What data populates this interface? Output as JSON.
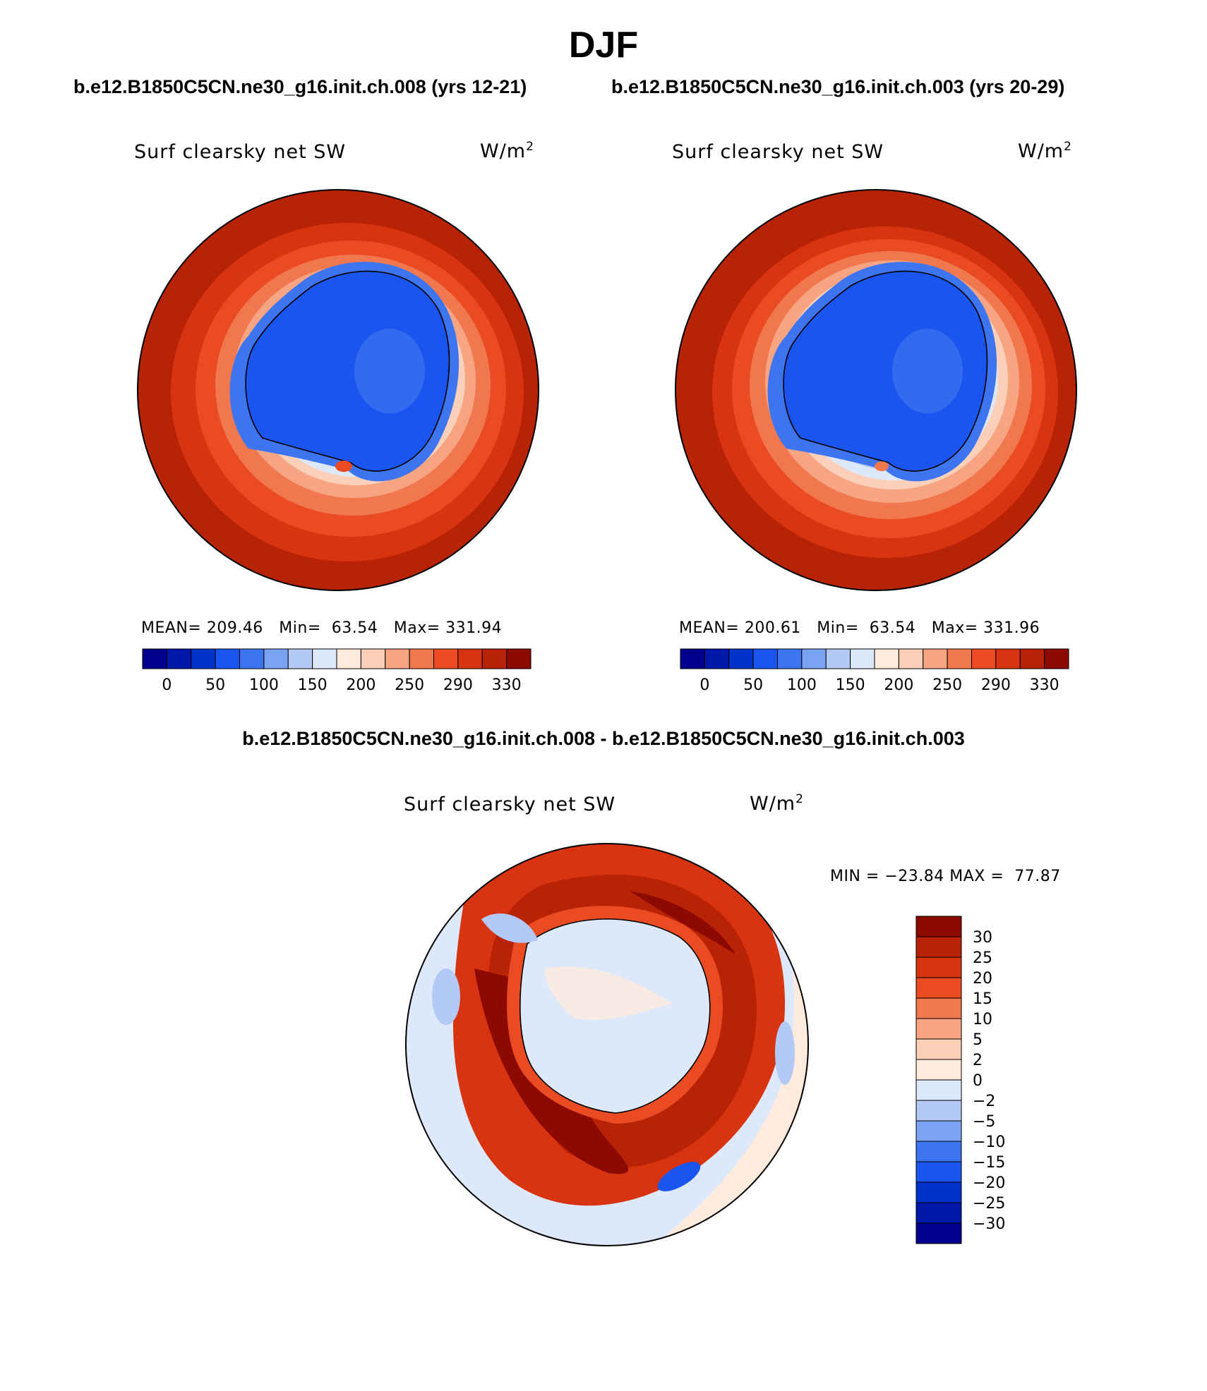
{
  "page": {
    "title": "DJF",
    "case_a_title": "b.e12.B1850C5CN.ne30_g16.init.ch.008 (yrs 12-21)",
    "case_b_title": "b.e12.B1850C5CN.ne30_g16.init.ch.003 (yrs 20-29)",
    "diff_title": "b.e12.B1850C5CN.ne30_g16.init.ch.008 - b.e12.B1850C5CN.ne30_g16.init.ch.003"
  },
  "panels": {
    "a": {
      "variable": "Surf clearsky net SW",
      "units_base": "W/m",
      "units_exp": "2",
      "mean_label": "MEAN=",
      "mean": "209.46",
      "min_label": "Min=",
      "min": "63.54",
      "max_label": "Max=",
      "max": "331.94"
    },
    "b": {
      "variable": "Surf clearsky net SW",
      "units_base": "W/m",
      "units_exp": "2",
      "mean_label": "MEAN=",
      "mean": "200.61",
      "min_label": "Min=",
      "min": "63.54",
      "max_label": "Max=",
      "max": "331.96"
    },
    "diff": {
      "variable": "Surf clearsky net SW",
      "units_base": "W/m",
      "units_exp": "2",
      "minmax": "MIN = −23.84 MAX =  77.87"
    }
  },
  "colorbar_abs": {
    "colors": [
      "#00008c",
      "#0019ab",
      "#0033cc",
      "#1a55ef",
      "#3d75f0",
      "#7aa3f4",
      "#b3caf7",
      "#dde9fa",
      "#feebdd",
      "#fcd0b8",
      "#f7a482",
      "#f1774e",
      "#ea4b22",
      "#d93411",
      "#b82205",
      "#8c0a00"
    ],
    "labels": [
      "0",
      "50",
      "100",
      "150",
      "200",
      "250",
      "290",
      "330"
    ]
  },
  "colorbar_diff": {
    "colors": [
      "#8c0a00",
      "#b82205",
      "#d93411",
      "#ea4b22",
      "#f1774e",
      "#f7a482",
      "#fcd0b8",
      "#feebdd",
      "#dde9fa",
      "#b3caf7",
      "#7aa3f4",
      "#3d75f0",
      "#1a55ef",
      "#0033cc",
      "#0019ab",
      "#00008c"
    ],
    "labels": [
      "30",
      "25",
      "20",
      "15",
      "10",
      "5",
      "2",
      "0",
      "−2",
      "−5",
      "−10",
      "−15",
      "−20",
      "−25",
      "−30"
    ]
  }
}
